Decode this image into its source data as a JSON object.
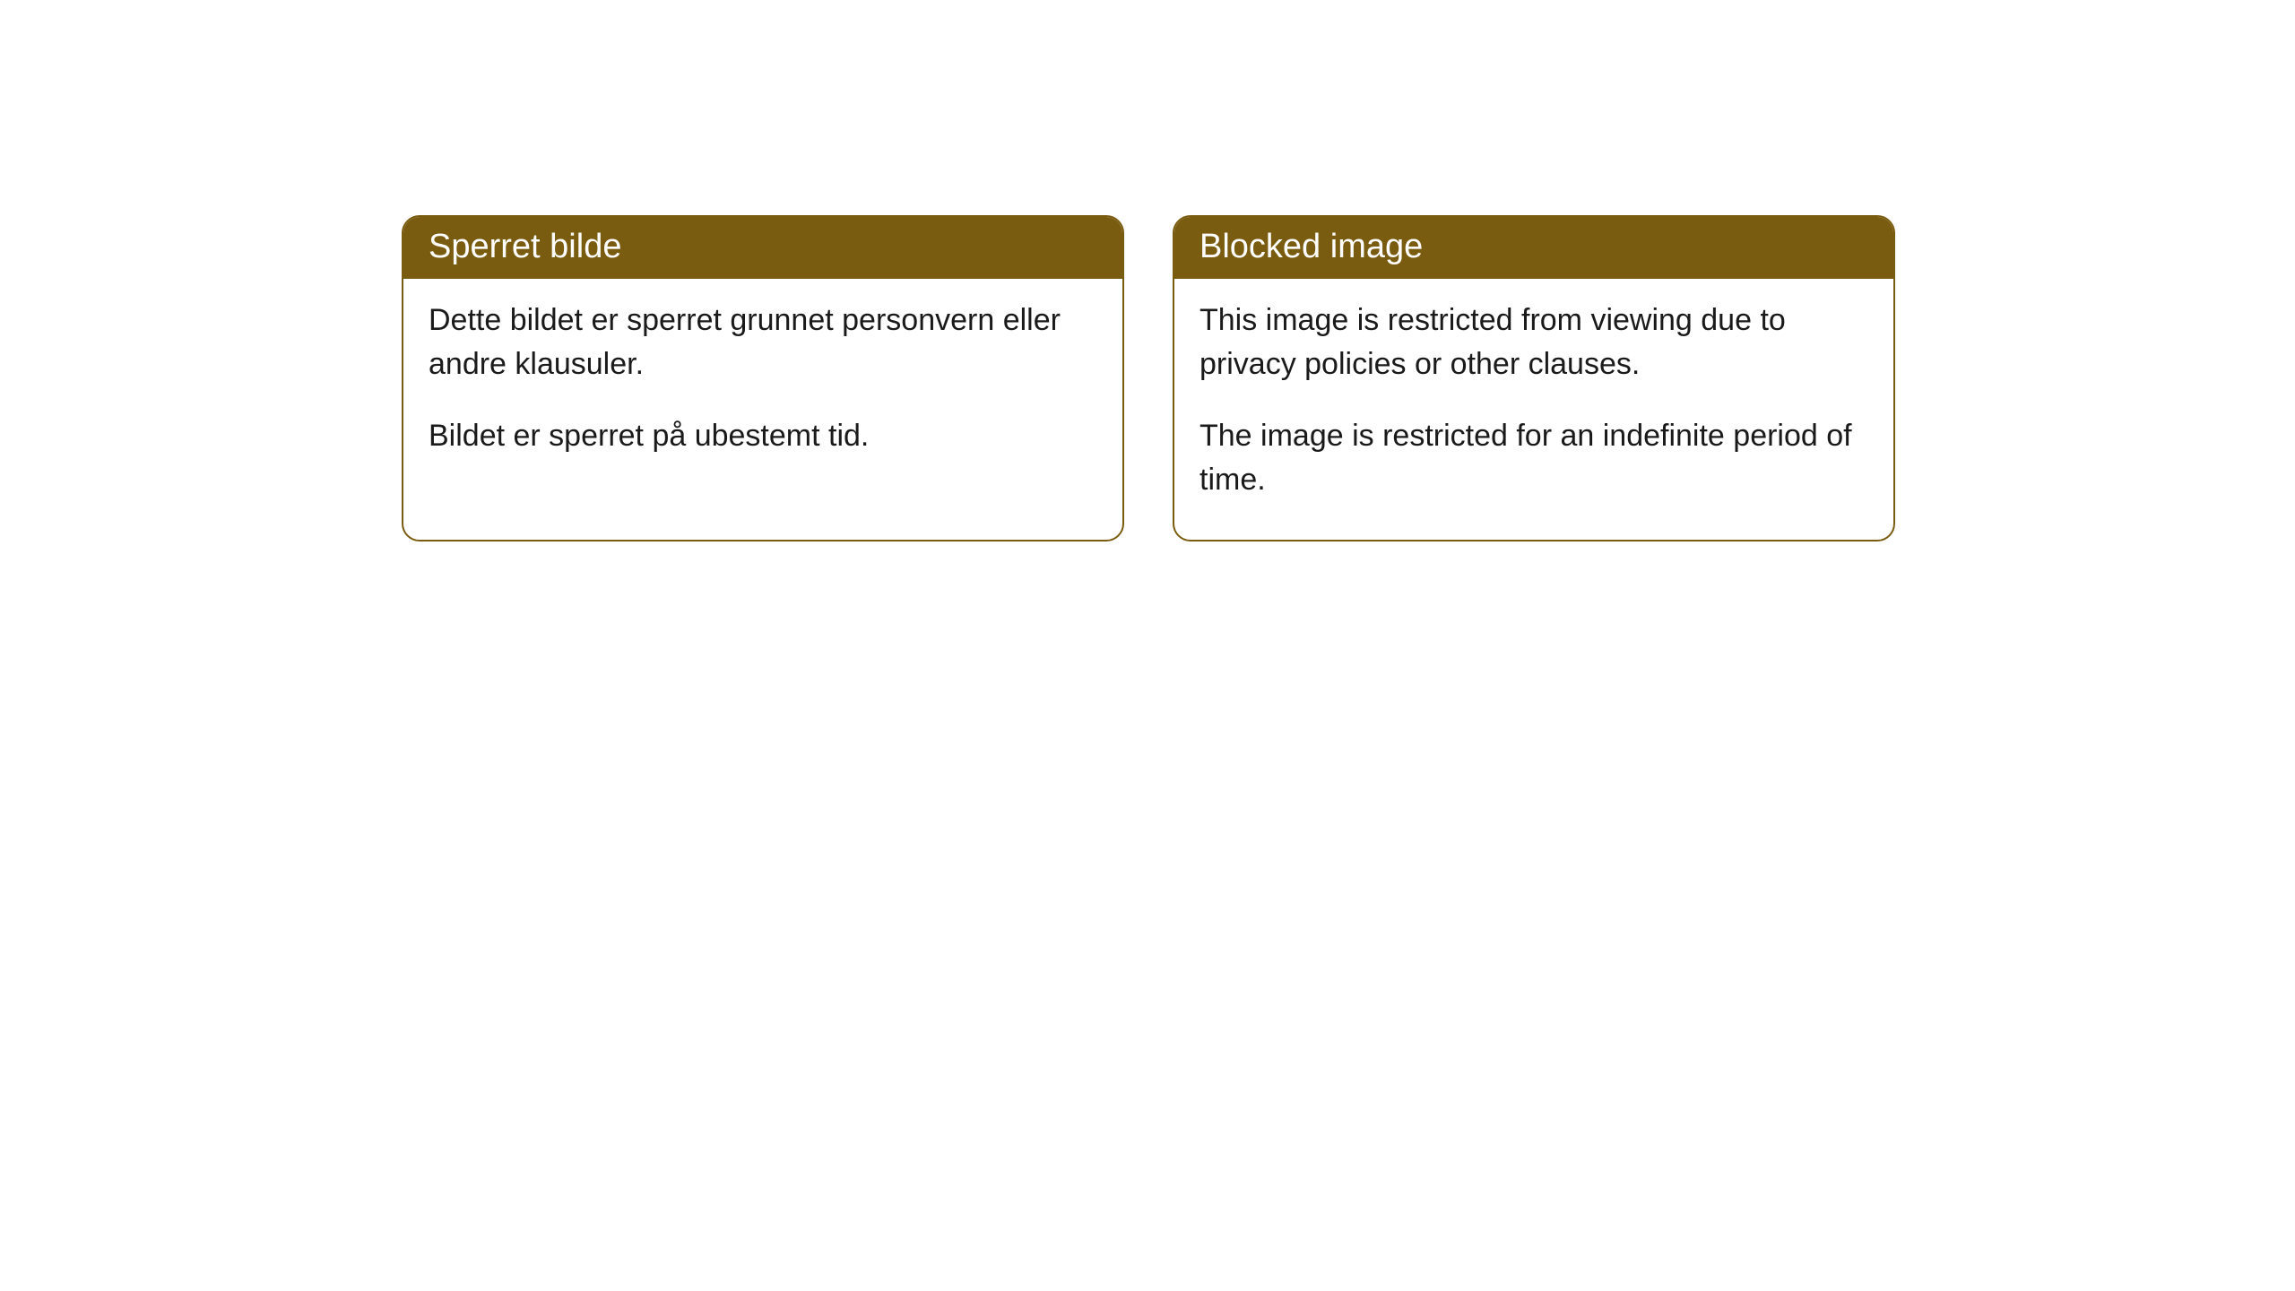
{
  "cards": [
    {
      "title": "Sperret bilde",
      "paragraph1": "Dette bildet er sperret grunnet personvern eller andre klausuler.",
      "paragraph2": "Bildet er sperret på ubestemt tid."
    },
    {
      "title": "Blocked image",
      "paragraph1": "This image is restricted from viewing due to privacy policies or other clauses.",
      "paragraph2": "The image is restricted for an indefinite period of time."
    }
  ],
  "styling": {
    "header_background": "#7a5c10",
    "header_text_color": "#ffffff",
    "border_color": "#7a5c10",
    "body_background": "#ffffff",
    "body_text_color": "#1a1a1a",
    "border_radius": 20,
    "header_fontsize": 38,
    "body_fontsize": 34
  }
}
